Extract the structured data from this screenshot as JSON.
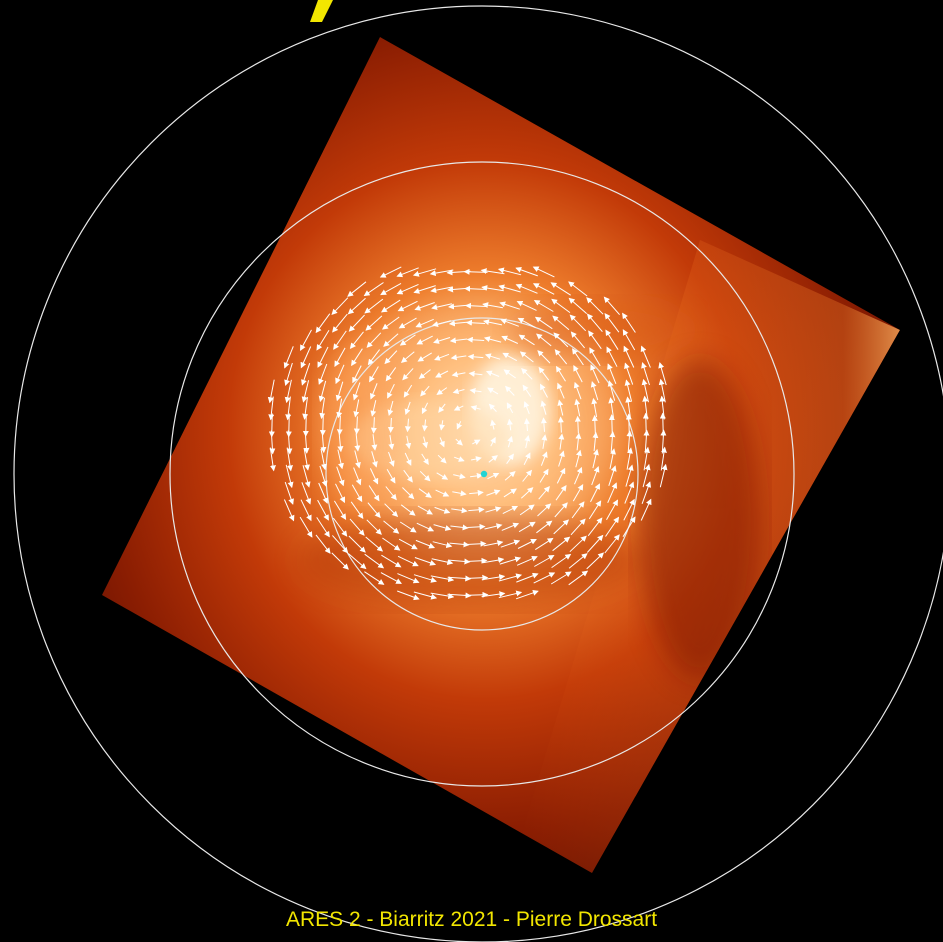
{
  "footer": {
    "text": "ARES 2 - Biarritz 2021 - Pierre Drossart"
  },
  "colors": {
    "background": "#000000",
    "grid": "#e8e8e8",
    "footer_text": "#f2e600",
    "title_fragment": "#f2e600",
    "pole_marker": "#21d4d4",
    "image_dark": "#5a0d00",
    "image_mid": "#c23a08",
    "image_bright": "#ffd9a0"
  },
  "icons": {
    "pole_marker": "pole-marker-icon"
  }
}
